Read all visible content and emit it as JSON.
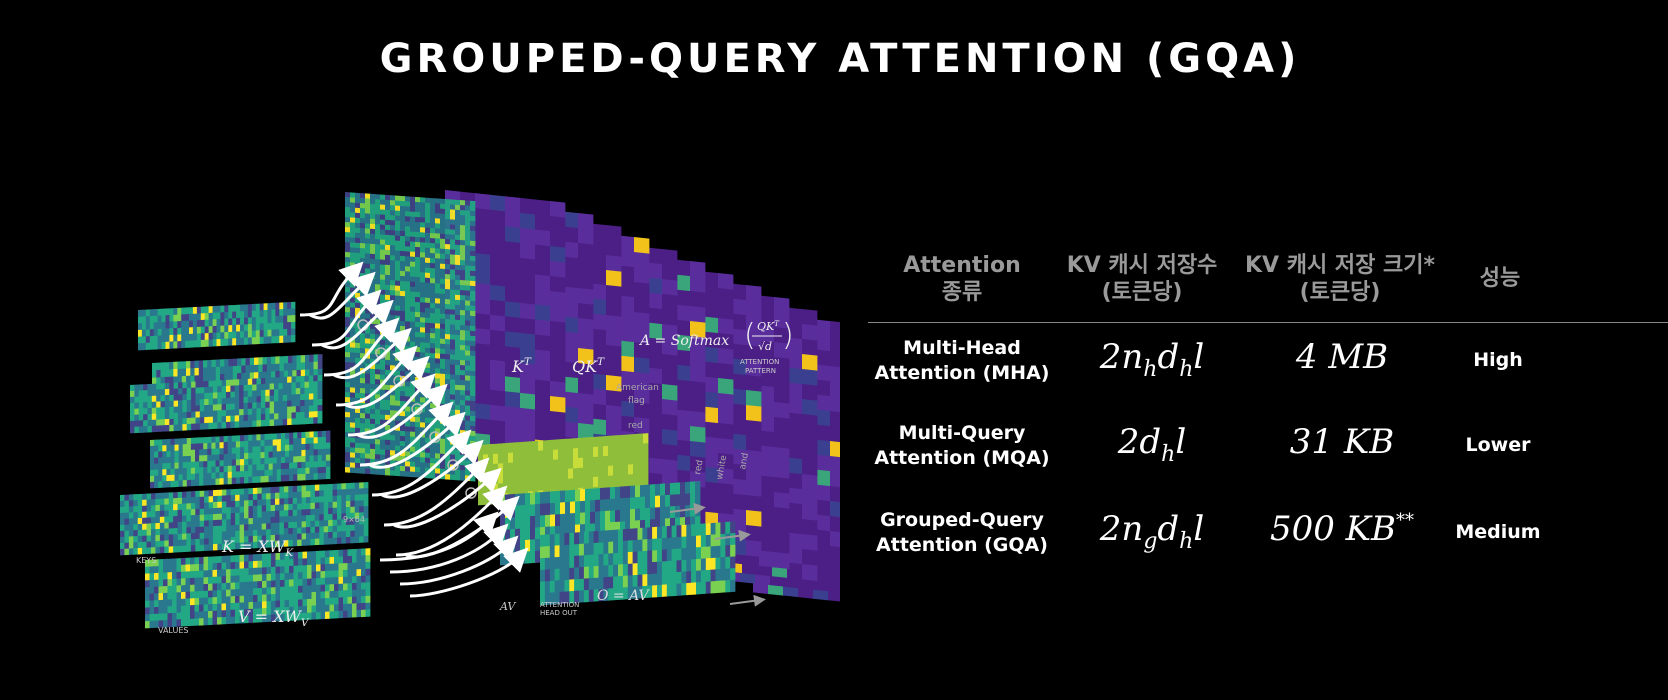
{
  "title": "GROUPED-QUERY ATTENTION (GQA)",
  "illustration": {
    "keys": "KEYS",
    "values": "VALUES",
    "k_formula": {
      "base": "K = XW",
      "sub": "K"
    },
    "v_formula": {
      "base": "V = XW",
      "sub": "V"
    },
    "dims": "9×64",
    "kt": {
      "base": "K",
      "sup": "T"
    },
    "qkt": {
      "base": "QK",
      "sup": "T"
    },
    "softmax": {
      "lhs": "A = Softmax",
      "num": "QK",
      "num_sup": "T",
      "den": "√d"
    },
    "pattern": [
      "ATTENTION",
      "PATTERN"
    ],
    "tokens": [
      "American",
      "flag",
      "red"
    ],
    "axis_tokens": [
      "red",
      "white",
      "and"
    ],
    "head_out": [
      "ATTENTION",
      "HEAD OUT"
    ],
    "o_formula": "O = AV",
    "av": "AV"
  },
  "table": {
    "headers": [
      [
        "Attention",
        "종류"
      ],
      [
        "KV 캐시 저장수",
        "(토큰당)"
      ],
      [
        "KV 캐시 저장 크기*",
        "(토큰당)"
      ],
      [
        "성능"
      ]
    ],
    "rows": [
      {
        "name": [
          "Multi-Head",
          "Attention (MHA)"
        ],
        "kv_count": [
          {
            "base": "2n",
            "sub": "h"
          },
          {
            "base": "d",
            "sub": "h"
          },
          {
            "base": "l"
          }
        ],
        "kv_size": {
          "base": "4 MB"
        },
        "performance": "High"
      },
      {
        "name": [
          "Multi-Query",
          "Attention (MQA)"
        ],
        "kv_count": [
          {
            "base": "2d",
            "sub": "h"
          },
          {
            "base": "l"
          }
        ],
        "kv_size": {
          "base": "31 KB"
        },
        "performance": "Lower"
      },
      {
        "name": [
          "Grouped-Query",
          "Attention (GQA)"
        ],
        "kv_count": [
          {
            "base": "2n",
            "sub": "g"
          },
          {
            "base": "d",
            "sub": "h"
          },
          {
            "base": "l"
          }
        ],
        "kv_size": {
          "base": "500 KB",
          "sup": "**"
        },
        "performance": "Medium"
      }
    ]
  }
}
